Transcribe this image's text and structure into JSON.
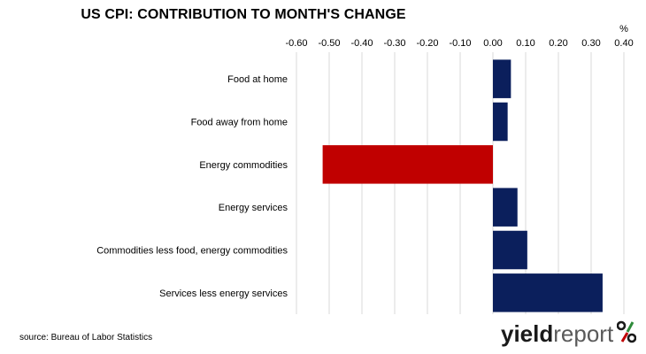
{
  "title": "US CPI: CONTRIBUTION TO MONTH'S CHANGE",
  "unit": "%",
  "source": "source: Bureau of Labor Statistics",
  "logo": {
    "part1": "yield",
    "part2": "report",
    "symbol": "%"
  },
  "colors": {
    "positive": "#0b1f5c",
    "negative": "#c00000",
    "grid": "#d9d9d9"
  },
  "chart_data": {
    "type": "bar",
    "orientation": "horizontal",
    "title": "US CPI: CONTRIBUTION TO MONTH'S CHANGE",
    "xlabel": "%",
    "xlim": [
      -0.6,
      0.4
    ],
    "x_ticks": [
      "-0.60",
      "-0.50",
      "-0.40",
      "-0.30",
      "-0.20",
      "-0.10",
      "0.00",
      "0.10",
      "0.20",
      "0.30",
      "0.40"
    ],
    "grid": true,
    "categories": [
      "Food at home",
      "Food away from home",
      "Energy commodities",
      "Energy services",
      "Commodities less food, energy commodities",
      "Services less energy services"
    ],
    "values": [
      0.055,
      0.045,
      -0.52,
      0.075,
      0.105,
      0.335
    ]
  }
}
